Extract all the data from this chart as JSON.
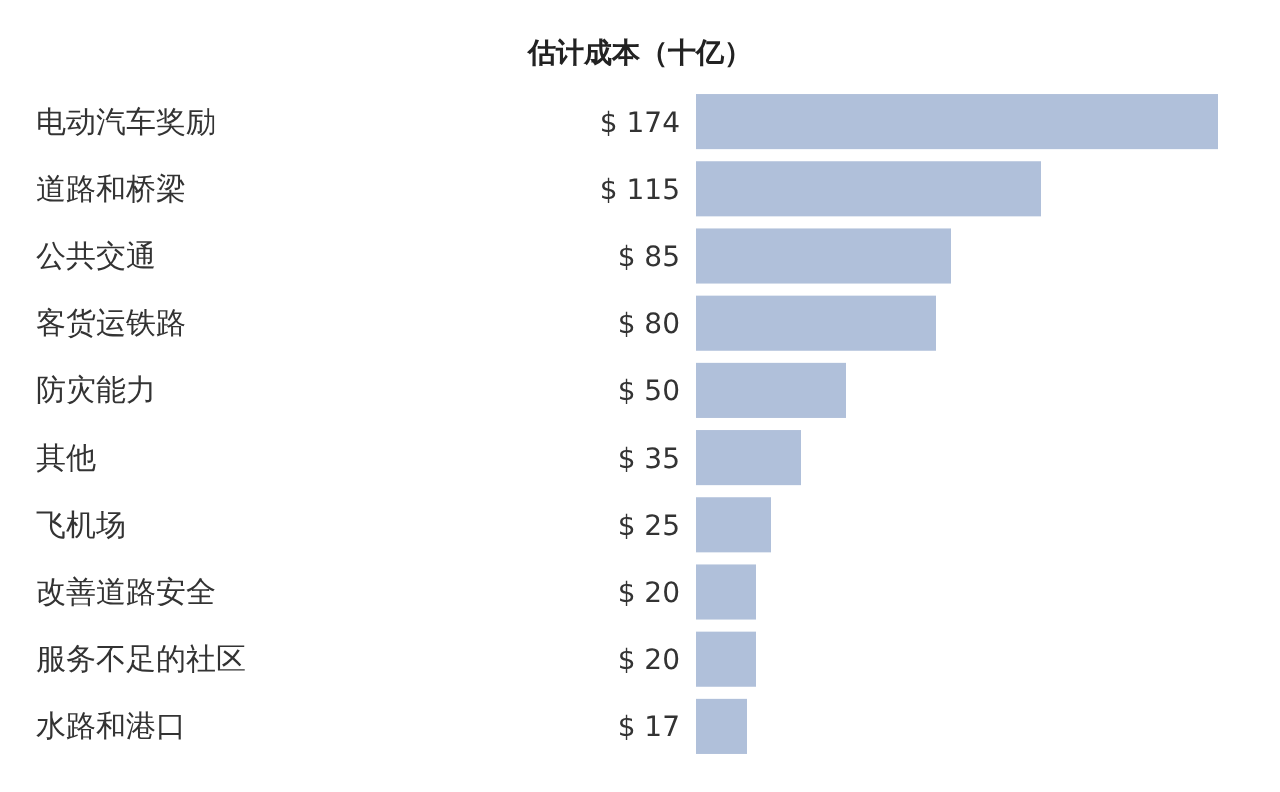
{
  "chart_data": {
    "type": "bar",
    "orientation": "horizontal",
    "title": "估计成本（十亿）",
    "categories": [
      "电动汽车奖励",
      "道路和桥梁",
      "公共交通",
      "客货运铁路",
      "防灾能力",
      "其他",
      "飞机场",
      "改善道路安全",
      "服务不足的社区",
      "水路和港口"
    ],
    "values": [
      174,
      115,
      85,
      80,
      50,
      35,
      25,
      20,
      20,
      17
    ],
    "value_labels": [
      "$ 174",
      "$ 115",
      "$ 85",
      "$ 80",
      "$ 50",
      "$ 35",
      "$ 25",
      "$ 20",
      "$ 20",
      "$ 17"
    ],
    "color": "#b0c0da"
  }
}
